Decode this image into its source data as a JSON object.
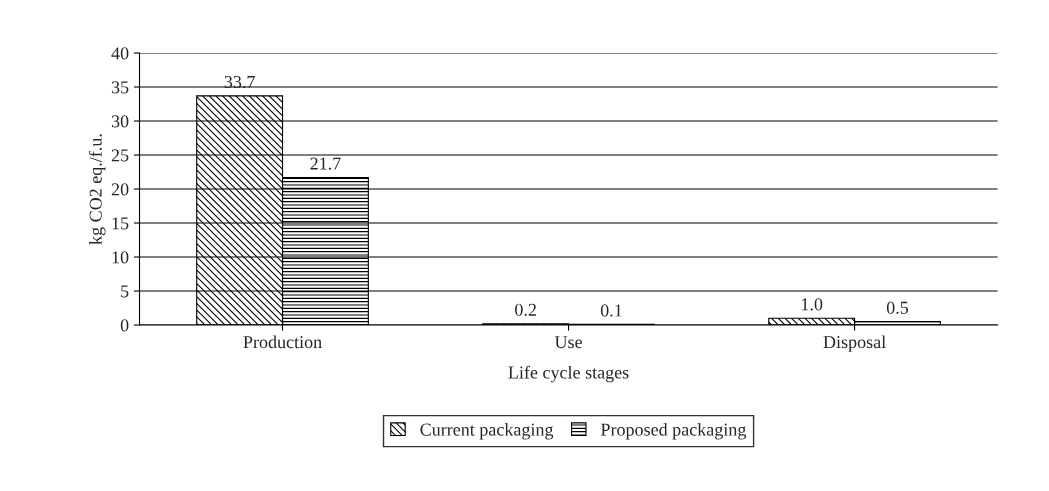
{
  "chart_data": {
    "type": "bar",
    "xlabel": "Life cycle stages",
    "ylabel": "kg CO2 eq./f.u.",
    "categories": [
      "Production",
      "Use",
      "Disposal"
    ],
    "series": [
      {
        "name": "Current packaging",
        "color": "#000000",
        "values": [
          33.7,
          0.2,
          1.0
        ],
        "value_labels": [
          "33.7",
          "0.2",
          "1.0"
        ]
      },
      {
        "name": "Proposed packaging",
        "color": "#000000",
        "values": [
          21.7,
          0.1,
          0.5
        ],
        "value_labels": [
          "21.7",
          "0.1",
          "0.5"
        ]
      }
    ],
    "ylim": [
      0,
      40
    ],
    "yticks": [
      0,
      5,
      10,
      15,
      20,
      25,
      30,
      35,
      40
    ],
    "grid": "y",
    "legend": "bottom"
  }
}
